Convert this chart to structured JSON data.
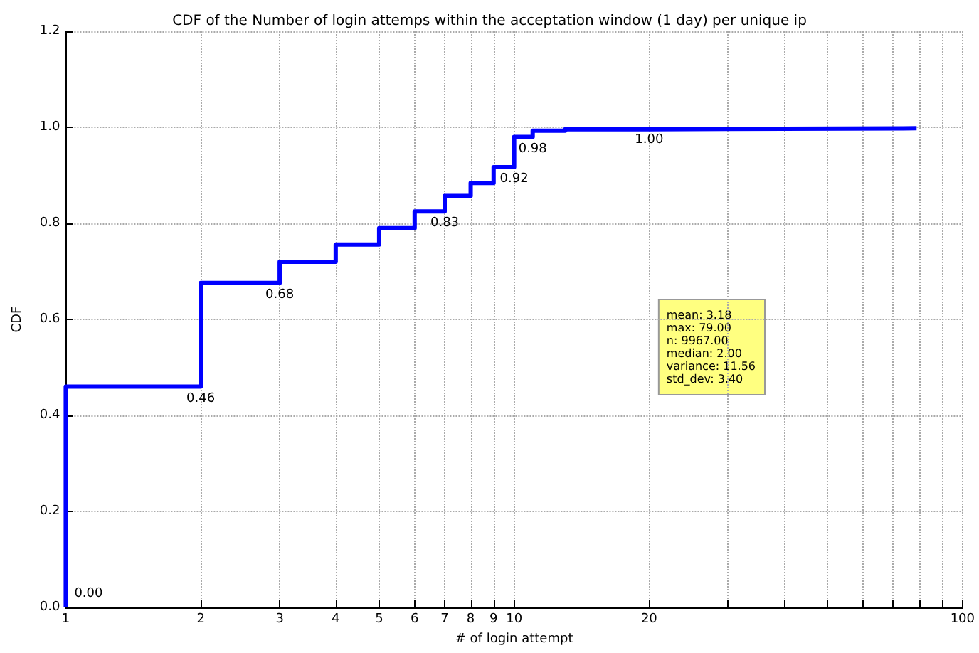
{
  "chart_data": {
    "type": "step",
    "title": "CDF of the Number of login attemps within the acceptation window (1 day) per unique ip",
    "xlabel": "# of login attempt",
    "ylabel": "CDF",
    "series": [
      {
        "color": "#0000ff",
        "x": [
          1,
          1,
          2,
          3,
          4,
          5,
          6,
          7,
          8,
          9,
          10,
          11,
          13,
          20,
          79
        ],
        "values": [
          0,
          0.46,
          0.676,
          0.72,
          0.756,
          0.79,
          0.825,
          0.857,
          0.884,
          0.917,
          0.98,
          0.993,
          0.996,
          0.998,
          1.0
        ]
      }
    ],
    "annotations": [
      {
        "text": "0.00",
        "x": 1,
        "y": 0
      },
      {
        "text": "0.46",
        "x": 2,
        "y": 0.46
      },
      {
        "text": "0.68",
        "x": 3,
        "y": 0.676
      },
      {
        "text": "0.83",
        "x": 7,
        "y": 0.825
      },
      {
        "text": "0.92",
        "x": 10,
        "y": 0.917
      },
      {
        "text": "0.98",
        "x": 11,
        "y": 0.98
      },
      {
        "text": "1.00",
        "x": 20,
        "y": 0.998
      },
      "mean: 3.18\nmax: 79.00\nn: 9967.00\nmedian: 2.00\nvariance: 11.56\nstd_dev: 3.40"
    ],
    "log": "x",
    "xlim": [
      1,
      100
    ],
    "xticks": [
      1,
      2,
      3,
      4,
      5,
      6,
      7,
      8,
      9,
      10,
      20,
      {
        "value": 30,
        "label": null
      },
      {
        "value": 40,
        "label": null
      },
      {
        "value": 50,
        "label": null
      },
      {
        "value": 60,
        "label": null
      },
      {
        "value": 70,
        "label": null
      },
      {
        "value": 80,
        "label": null
      },
      {
        "value": 90,
        "label": null
      },
      100
    ],
    "ylim": [
      0,
      1.2
    ],
    "yticks": [
      {
        "value": 0,
        "label": "0.0"
      },
      {
        "value": 0.2,
        "label": "0.2"
      },
      {
        "value": 0.4,
        "label": "0.4"
      },
      {
        "value": 0.6,
        "label": "0.6"
      },
      {
        "value": 0.8,
        "label": "0.8"
      },
      {
        "value": 1.0,
        "label": "1.0"
      },
      {
        "value": 1.2,
        "label": "1.2"
      }
    ],
    "grid": true,
    "marker": "none",
    "line_style": "solid"
  }
}
